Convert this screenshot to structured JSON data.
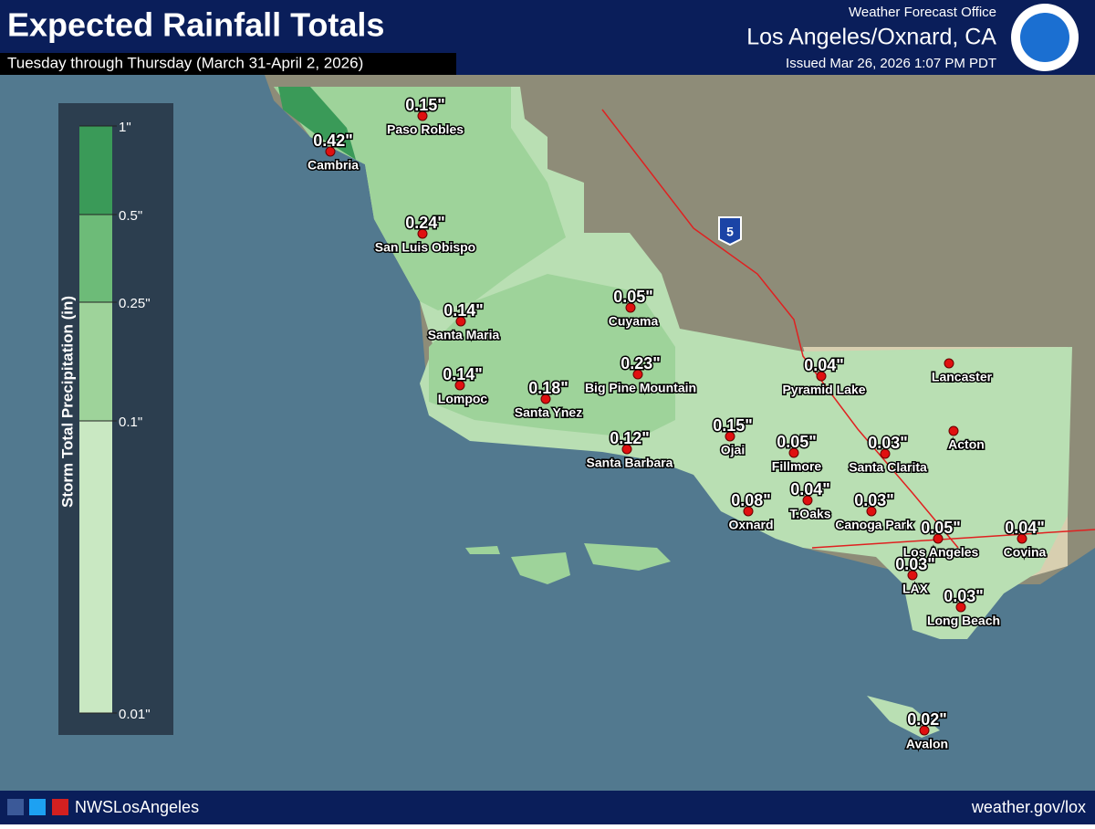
{
  "header": {
    "title": "Expected Rainfall Totals",
    "subtitle": "Tuesday through Thursday (March 31-April 2, 2026)",
    "office": "Weather Forecast Office",
    "location": "Los Angeles/Oxnard, CA",
    "issued": "Issued Mar 26, 2026 1:07 PM PDT"
  },
  "legend": {
    "title": "Storm Total Precipitation (in)",
    "ticks": [
      "1\"",
      "0.5\"",
      "0.25\"",
      "0.1\"",
      "0.01\""
    ]
  },
  "highway": "5",
  "cities": [
    {
      "name": "Paso Robles",
      "amount": "0.15\""
    },
    {
      "name": "Cambria",
      "amount": "0.42\""
    },
    {
      "name": "San Luis Obispo",
      "amount": "0.24\""
    },
    {
      "name": "Santa Maria",
      "amount": "0.14\""
    },
    {
      "name": "Lompoc",
      "amount": "0.14\""
    },
    {
      "name": "Santa Ynez",
      "amount": "0.18\""
    },
    {
      "name": "Big Pine Mountain",
      "amount": "0.23\""
    },
    {
      "name": "Cuyama",
      "amount": "0.05\""
    },
    {
      "name": "Santa Barbara",
      "amount": "0.12\""
    },
    {
      "name": "Ojai",
      "amount": "0.15\""
    },
    {
      "name": "Pyramid Lake",
      "amount": "0.04\""
    },
    {
      "name": "Lancaster"
    },
    {
      "name": "Acton"
    },
    {
      "name": "Fillmore",
      "amount": "0.05\""
    },
    {
      "name": "Santa Clarita",
      "amount": "0.03\""
    },
    {
      "name": "T.Oaks",
      "amount": "0.04\""
    },
    {
      "name": "Canoga Park",
      "amount": "0.03\""
    },
    {
      "name": "Oxnard",
      "amount": "0.08\""
    },
    {
      "name": "Los Angeles",
      "amount": "0.05\""
    },
    {
      "name": "Covina",
      "amount": "0.04\""
    },
    {
      "name": "LAX",
      "amount": "0.03\""
    },
    {
      "name": "Long Beach",
      "amount": "0.03\""
    },
    {
      "name": "Avalon",
      "amount": "0.02\""
    }
  ],
  "footer": {
    "handle": "NWSLosAngeles",
    "url": "weather.gov/lox"
  }
}
